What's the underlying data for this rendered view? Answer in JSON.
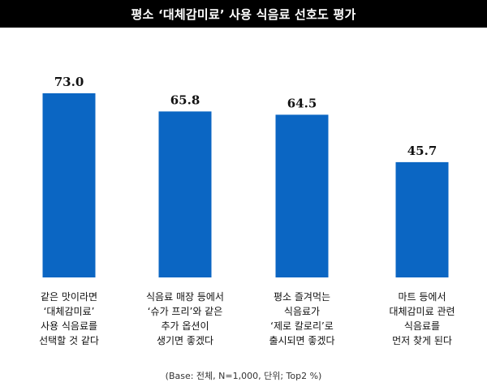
{
  "header": {
    "title": "평소 ‘대체감미료’ 사용 식음료 선호도 평가"
  },
  "footnote": "(Base: 전체, N=1,000, 단위; Top2 %)",
  "colors": {
    "bar": "#0b66c3",
    "header_bg": "#000000",
    "header_text": "#ffffff"
  },
  "chart_data": {
    "type": "bar",
    "title": "평소 ‘대체감미료’ 사용 식음료 선호도 평가",
    "categories": [
      "같은 맛이라면\n‘대체감미료’\n사용 식음료를\n선택할 것 같다",
      "식음료 매장 등에서\n‘슈가 프리’와 같은\n추가 옵션이\n생기면 좋겠다",
      "평소 즐겨먹는\n식음료가\n‘제로 칼로리’로\n출시되면 좋겠다",
      "마트 등에서\n대체감미료 관련\n식음료를\n먼저 찾게 된다"
    ],
    "values": [
      73.0,
      65.8,
      64.5,
      45.7
    ],
    "value_labels": [
      "73.0",
      "65.8",
      "64.5",
      "45.7"
    ],
    "ylim": [
      0,
      100
    ]
  }
}
